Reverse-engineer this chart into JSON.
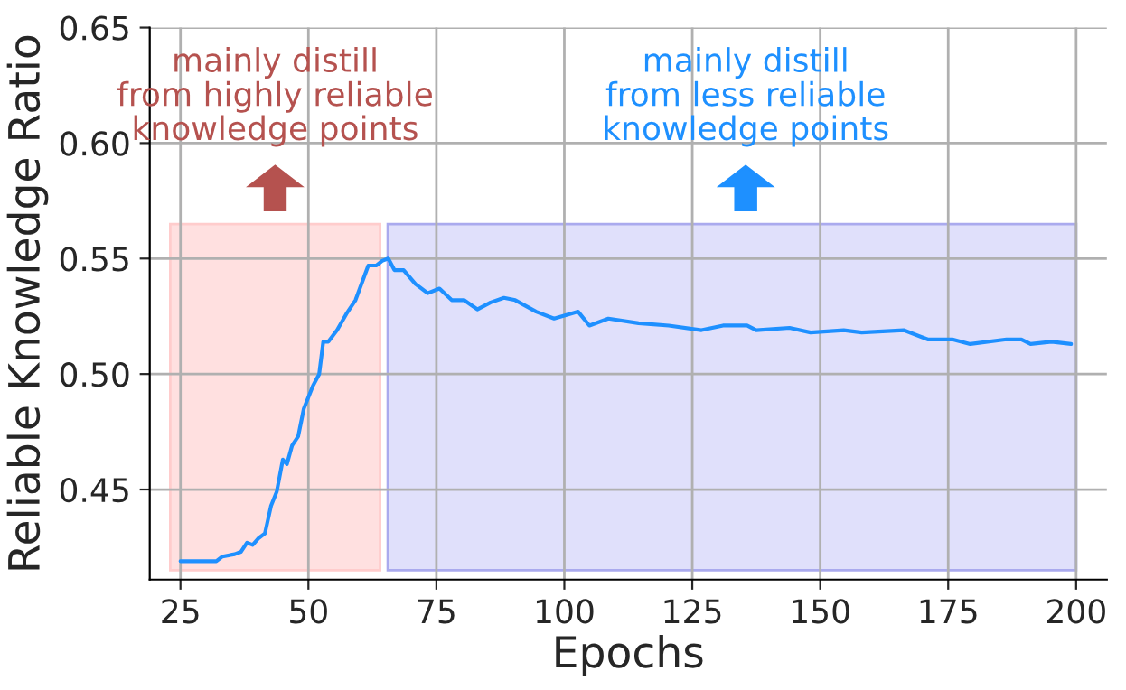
{
  "chart_data": {
    "type": "line",
    "xlabel": "Epochs",
    "ylabel": "Reliable Knowledge Ratio",
    "xlim": [
      19,
      206
    ],
    "ylim": [
      0.411,
      0.65
    ],
    "xticks": [
      25,
      50,
      75,
      100,
      125,
      150,
      175,
      200
    ],
    "yticks": [
      0.45,
      {
        "value": 0.5,
        "label": "0.50"
      },
      0.55,
      {
        "value": 0.6,
        "label": "0.60"
      },
      0.65
    ],
    "grid": true,
    "line_style": "solid",
    "bands": [
      {
        "axis": "x",
        "from": 23,
        "to": 64,
        "label": "mainly distill\nfrom highly reliable\nknowledge points",
        "color": "#ffe0e0"
      },
      {
        "axis": "x",
        "from": 65.5,
        "to": 200,
        "label": "mainly distill\nfrom less reliable\nknowledge points",
        "color": "#e0e0fb"
      }
    ],
    "series": [
      {
        "color": "#1e90ff",
        "x": [
          25,
          32,
          33.2,
          35.6,
          36.8,
          38,
          39.1,
          40.3,
          41.5,
          42.7,
          43.8,
          45,
          45.8,
          46.8,
          48,
          49.1,
          50.9,
          52.1,
          52.9,
          53.9,
          55.6,
          57.4,
          59.2,
          61.7,
          63.3,
          64.4,
          65.6,
          66.8,
          68.6,
          70.9,
          73.3,
          75.6,
          78,
          80.4,
          83,
          85.6,
          88.2,
          90.4,
          94.5,
          98,
          102.7,
          104.9,
          108.6,
          114.5,
          120.4,
          126.8,
          131,
          135.7,
          137.5,
          144,
          148.1,
          154.6,
          158.1,
          166.3,
          171,
          175.8,
          179.3,
          186.4,
          189.3,
          191.1,
          195.2,
          199
        ],
        "values": [
          0.419,
          0.419,
          0.421,
          0.422,
          0.423,
          0.427,
          0.426,
          0.429,
          0.431,
          0.443,
          0.449,
          0.463,
          0.461,
          0.469,
          0.473,
          0.485,
          0.495,
          0.5,
          0.514,
          0.514,
          0.519,
          0.526,
          0.532,
          0.547,
          0.547,
          0.549,
          0.55,
          0.545,
          0.545,
          0.539,
          0.535,
          0.537,
          0.532,
          0.532,
          0.528,
          0.531,
          0.533,
          0.532,
          0.527,
          0.524,
          0.527,
          0.521,
          0.524,
          0.522,
          0.521,
          0.519,
          0.521,
          0.521,
          0.519,
          0.52,
          0.518,
          0.519,
          0.518,
          0.519,
          0.515,
          0.515,
          0.513,
          0.515,
          0.515,
          0.513,
          0.514,
          0.513
        ]
      }
    ]
  }
}
